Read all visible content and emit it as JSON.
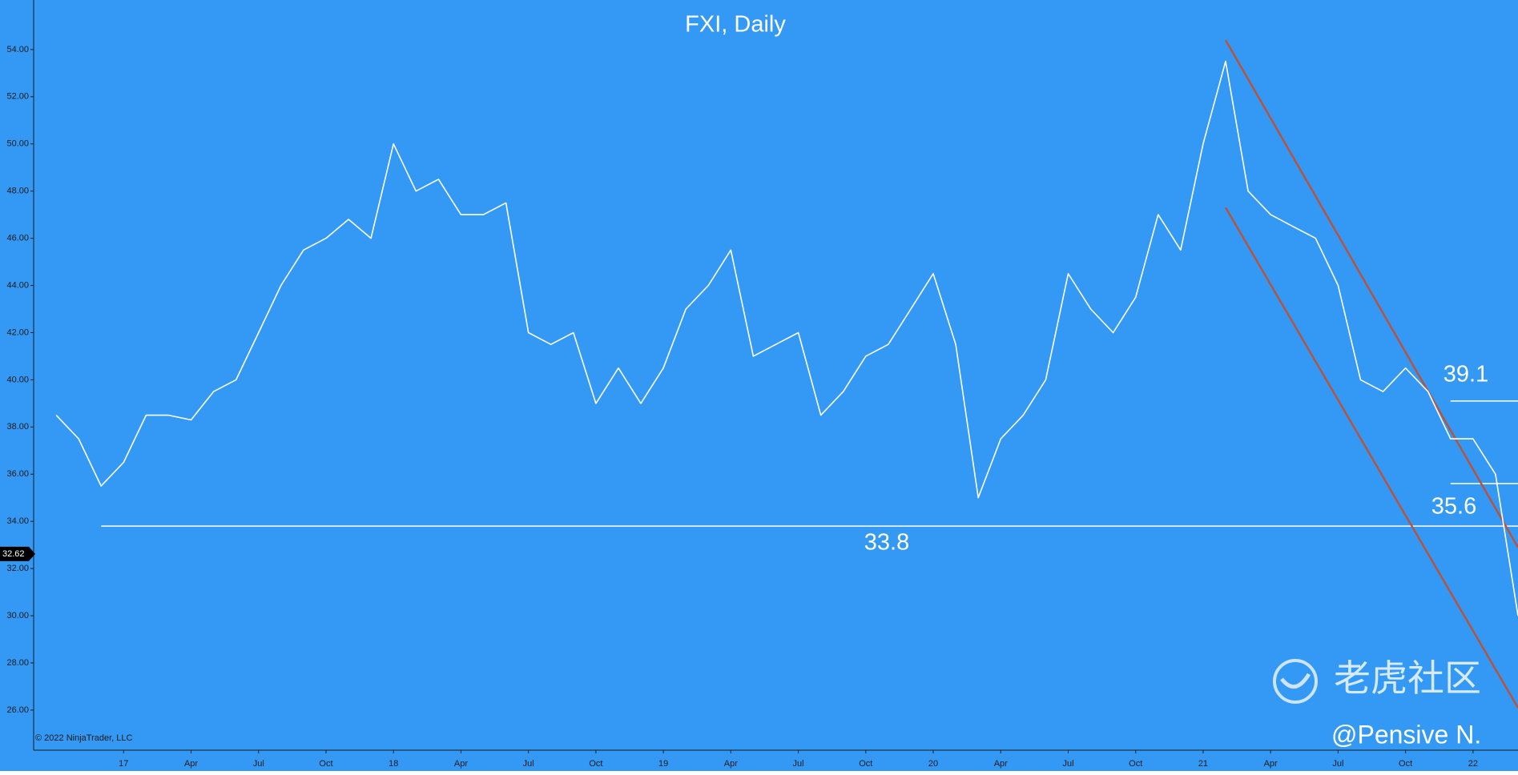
{
  "chart_data": {
    "type": "line",
    "title": "FXI, Daily",
    "background": "#3399f4",
    "color": "#ffffff",
    "x": [
      "2016-10",
      "2016-11",
      "2016-12",
      "2017-01",
      "2017-02",
      "2017-03",
      "2017-04",
      "2017-05",
      "2017-06",
      "2017-07",
      "2017-08",
      "2017-09",
      "2017-10",
      "2017-11",
      "2017-12",
      "2018-01",
      "2018-02",
      "2018-03",
      "2018-04",
      "2018-05",
      "2018-06",
      "2018-07",
      "2018-08",
      "2018-09",
      "2018-10",
      "2018-11",
      "2018-12",
      "2019-01",
      "2019-02",
      "2019-03",
      "2019-04",
      "2019-05",
      "2019-06",
      "2019-07",
      "2019-08",
      "2019-09",
      "2019-10",
      "2019-11",
      "2019-12",
      "2020-01",
      "2020-02",
      "2020-03",
      "2020-04",
      "2020-05",
      "2020-06",
      "2020-07",
      "2020-08",
      "2020-09",
      "2020-10",
      "2020-11",
      "2020-12",
      "2021-01",
      "2021-02",
      "2021-03",
      "2021-04",
      "2021-05",
      "2021-06",
      "2021-07",
      "2021-08",
      "2021-09",
      "2021-10",
      "2021-11",
      "2021-12",
      "2022-01",
      "2022-02",
      "2022-03"
    ],
    "values": [
      38.5,
      37.5,
      35.5,
      36.5,
      38.5,
      38.5,
      38.3,
      39.5,
      40,
      42,
      44,
      45.5,
      46,
      46.8,
      46,
      50,
      48,
      48.5,
      47,
      47,
      47.5,
      42,
      41.5,
      42,
      39,
      40.5,
      39,
      40.5,
      43,
      44,
      45.5,
      41,
      41.5,
      42,
      38.5,
      39.5,
      41,
      41.5,
      43,
      44.5,
      41.5,
      35,
      37.5,
      38.5,
      40,
      44.5,
      43,
      42,
      43.5,
      47,
      45.5,
      50,
      53.5,
      48,
      47,
      46.5,
      46,
      44,
      40,
      39.5,
      40.5,
      39.5,
      37.5,
      37.5,
      36,
      30
    ],
    "xlim": [
      "2016-09",
      "2022-03"
    ],
    "ylim": [
      24.3,
      56.1
    ],
    "xticks": [
      {
        "value": "2017-01",
        "label": "17"
      },
      {
        "value": "2017-04",
        "label": "Apr"
      },
      {
        "value": "2017-07",
        "label": "Jul"
      },
      {
        "value": "2017-10",
        "label": "Oct"
      },
      {
        "value": "2018-01",
        "label": "18"
      },
      {
        "value": "2018-04",
        "label": "Apr"
      },
      {
        "value": "2018-07",
        "label": "Jul"
      },
      {
        "value": "2018-10",
        "label": "Oct"
      },
      {
        "value": "2019-01",
        "label": "19"
      },
      {
        "value": "2019-04",
        "label": "Apr"
      },
      {
        "value": "2019-07",
        "label": "Jul"
      },
      {
        "value": "2019-10",
        "label": "Oct"
      },
      {
        "value": "2020-01",
        "label": "20"
      },
      {
        "value": "2020-04",
        "label": "Apr"
      },
      {
        "value": "2020-07",
        "label": "Jul"
      },
      {
        "value": "2020-10",
        "label": "Oct"
      },
      {
        "value": "2021-01",
        "label": "21"
      },
      {
        "value": "2021-04",
        "label": "Apr"
      },
      {
        "value": "2021-07",
        "label": "Jul"
      },
      {
        "value": "2021-10",
        "label": "Oct"
      },
      {
        "value": "2022-01",
        "label": "22"
      }
    ],
    "yticks": [
      {
        "value": 26,
        "label": "26.00"
      },
      {
        "value": 28,
        "label": "28.00"
      },
      {
        "value": 30,
        "label": "30.00"
      },
      {
        "value": 32,
        "label": "32.00"
      },
      {
        "value": 34,
        "label": "34.00"
      },
      {
        "value": 36,
        "label": "36.00"
      },
      {
        "value": 38,
        "label": "38.00"
      },
      {
        "value": 40,
        "label": "40.00"
      },
      {
        "value": 42,
        "label": "42.00"
      },
      {
        "value": 44,
        "label": "44.00"
      },
      {
        "value": 46,
        "label": "46.00"
      },
      {
        "value": 48,
        "label": "48.00"
      },
      {
        "value": 50,
        "label": "50.00"
      },
      {
        "value": 52,
        "label": "52.00"
      },
      {
        "value": 54,
        "label": "54.00"
      }
    ],
    "last_price": 32.62,
    "levels": [
      {
        "value": 33.8,
        "start": "2016-12"
      },
      {
        "value": 39.1,
        "start": "2021-12"
      },
      {
        "value": 35.6,
        "start": "2021-12"
      }
    ],
    "trendlines": [
      {
        "color": "#b8543e",
        "x": [
          "2021-02",
          "2022-03"
        ],
        "values": [
          54.4,
          32.9
        ]
      },
      {
        "color": "#b8543e",
        "x": [
          "2021-02",
          "2022-03"
        ],
        "values": [
          47.3,
          26.1
        ]
      }
    ],
    "copyright": "© 2022 NinjaTrader, LLC",
    "watermark": "老虎社区",
    "author": "@Pensive N."
  }
}
